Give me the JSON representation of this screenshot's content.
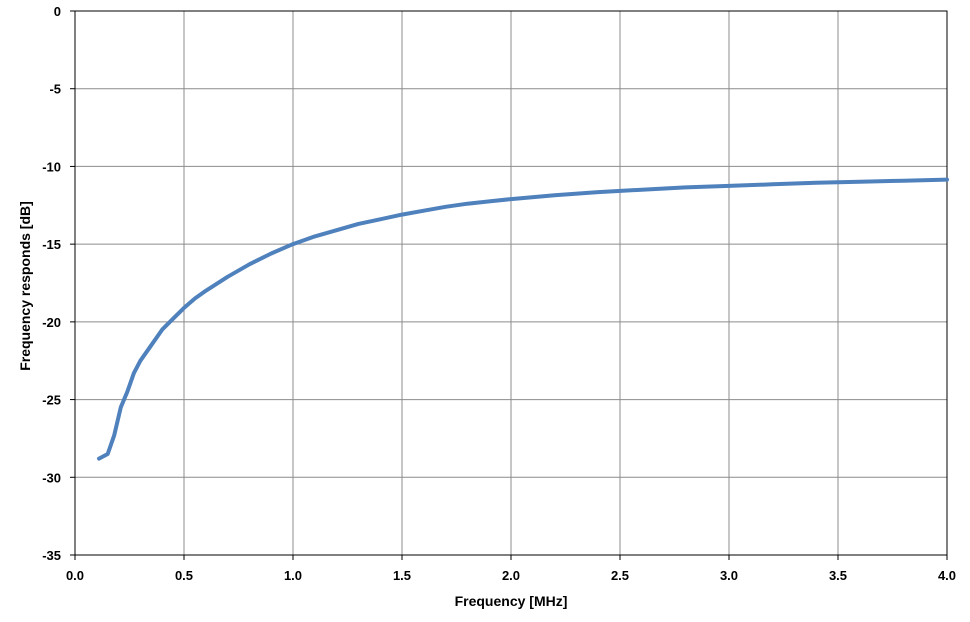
{
  "chart_data": {
    "type": "line",
    "xlabel": "Frequency [MHz]",
    "ylabel": "Frequency responds [dB]",
    "xlim": [
      0,
      4.0
    ],
    "ylim": [
      -35,
      0
    ],
    "x_ticks": [
      "0.0",
      "0.5",
      "1.0",
      "1.5",
      "2.0",
      "2.5",
      "3.0",
      "3.5",
      "4.0"
    ],
    "y_ticks": [
      "0",
      "-5",
      "-10",
      "-15",
      "-20",
      "-25",
      "-30",
      "-35"
    ],
    "grid": true,
    "legend": "none",
    "series": [
      {
        "color": "#4F81BD",
        "x": [
          0.11,
          0.15,
          0.18,
          0.21,
          0.24,
          0.27,
          0.3,
          0.35,
          0.4,
          0.45,
          0.5,
          0.55,
          0.6,
          0.7,
          0.8,
          0.9,
          1.0,
          1.1,
          1.2,
          1.3,
          1.4,
          1.5,
          1.6,
          1.7,
          1.8,
          1.9,
          2.0,
          2.2,
          2.4,
          2.6,
          2.8,
          3.0,
          3.2,
          3.4,
          3.6,
          3.8,
          4.0
        ],
        "values": [
          -28.8,
          -28.5,
          -27.3,
          -25.5,
          -24.5,
          -23.3,
          -22.5,
          -21.5,
          -20.5,
          -19.8,
          -19.1,
          -18.5,
          -18.0,
          -17.1,
          -16.3,
          -15.6,
          -15.0,
          -14.5,
          -14.1,
          -13.7,
          -13.4,
          -13.1,
          -12.85,
          -12.6,
          -12.4,
          -12.25,
          -12.1,
          -11.85,
          -11.65,
          -11.5,
          -11.35,
          -11.25,
          -11.15,
          -11.05,
          -10.98,
          -10.92,
          -10.85
        ]
      }
    ]
  }
}
